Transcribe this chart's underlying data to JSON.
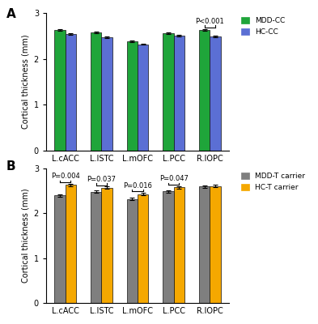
{
  "categories": [
    "L.cACC",
    "L.ISTC",
    "L.mOFC",
    "L.PCC",
    "R.IOPC"
  ],
  "panel_A": {
    "mdd_cc": [
      2.63,
      2.58,
      2.38,
      2.56,
      2.63
    ],
    "hc_cc": [
      2.54,
      2.47,
      2.32,
      2.5,
      2.49
    ],
    "mdd_cc_err": [
      0.025,
      0.02,
      0.02,
      0.02,
      0.025
    ],
    "hc_cc_err": [
      0.02,
      0.02,
      0.015,
      0.015,
      0.02
    ],
    "mdd_color": "#1FA53A",
    "hc_color": "#5B6FD4",
    "sig_bracket": {
      "region_idx": 4,
      "label": "P<0.001"
    },
    "legend": [
      "MDD-CC",
      "HC-CC"
    ],
    "ylabel": "Cortical thickness (mm)",
    "ylim": [
      0,
      3
    ],
    "yticks": [
      0,
      1,
      2,
      3
    ]
  },
  "panel_B": {
    "mdd_t": [
      2.4,
      2.48,
      2.32,
      2.49,
      2.6
    ],
    "hc_t": [
      2.63,
      2.57,
      2.43,
      2.58,
      2.61
    ],
    "mdd_t_err": [
      0.025,
      0.025,
      0.025,
      0.025,
      0.025
    ],
    "hc_t_err": [
      0.025,
      0.025,
      0.025,
      0.025,
      0.025
    ],
    "mdd_color": "#7F7F7F",
    "hc_color": "#F5A800",
    "sig_brackets": [
      {
        "region_idx": 0,
        "label": "P=0.004"
      },
      {
        "region_idx": 1,
        "label": "P=0.037"
      },
      {
        "region_idx": 2,
        "label": "P=0.016"
      },
      {
        "region_idx": 3,
        "label": "P=0.047"
      }
    ],
    "legend": [
      "MDD-T carrier",
      "HC-T carrier"
    ],
    "ylabel": "Cortical thickness (mm)",
    "ylim": [
      0,
      3
    ],
    "yticks": [
      0,
      1,
      2,
      3
    ]
  },
  "background_color": "#ffffff",
  "bar_width": 0.3,
  "label_A": "A",
  "label_B": "B"
}
